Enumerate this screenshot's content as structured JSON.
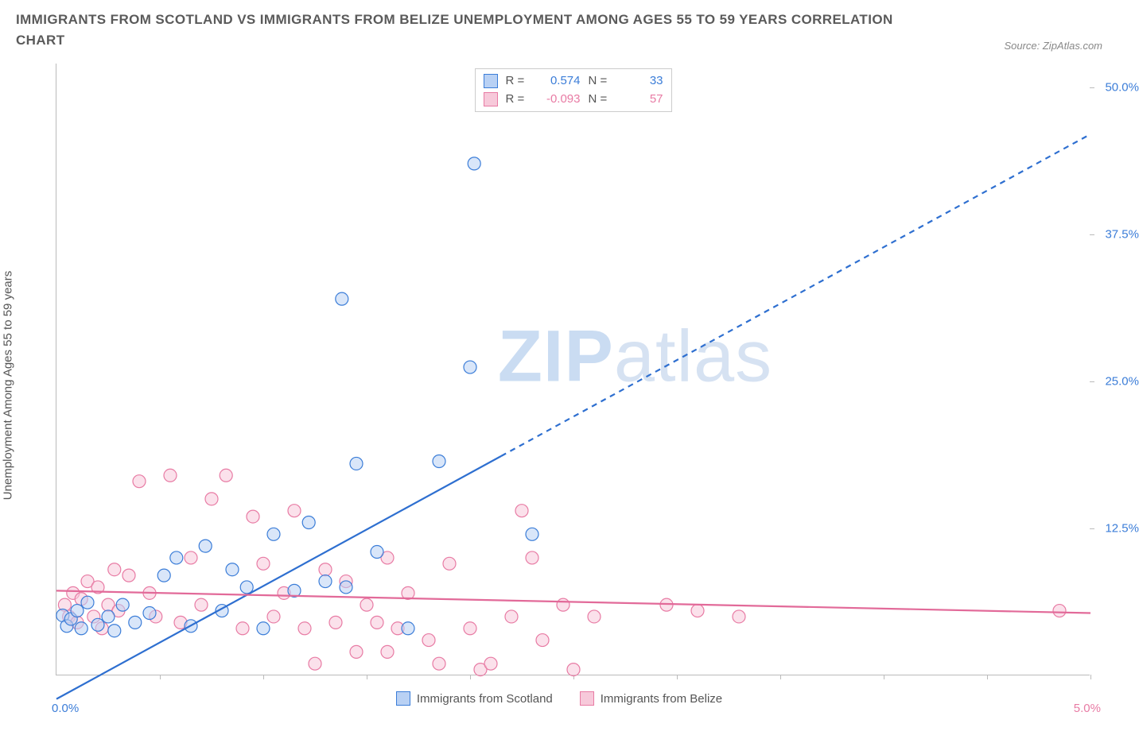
{
  "title": "IMMIGRANTS FROM SCOTLAND VS IMMIGRANTS FROM BELIZE UNEMPLOYMENT AMONG AGES 55 TO 59 YEARS CORRELATION CHART",
  "source_label": "Source: ZipAtlas.com",
  "y_axis_label": "Unemployment Among Ages 55 to 59 years",
  "watermark": {
    "bold": "ZIP",
    "rest": "atlas"
  },
  "chart": {
    "type": "scatter",
    "background_color": "#ffffff",
    "axis_color": "#bbbbbb",
    "xlim": [
      0.0,
      5.0
    ],
    "ylim": [
      0.0,
      52.0
    ],
    "x_ticks_pct": [
      10,
      20,
      30,
      40,
      50,
      60,
      70,
      80,
      90,
      100
    ],
    "y_ticks": [
      {
        "value": 12.5,
        "label": "12.5%"
      },
      {
        "value": 25.0,
        "label": "25.0%"
      },
      {
        "value": 37.5,
        "label": "37.5%"
      },
      {
        "value": 50.0,
        "label": "50.0%"
      }
    ],
    "x_min_label": "0.0%",
    "x_max_label": "5.0%",
    "marker_radius": 8,
    "marker_stroke_width": 1.2,
    "line_width": 2.2,
    "legend_top": {
      "r_label": "R =",
      "n_label": "N =",
      "rows": [
        {
          "swatch_fill": "#b9d1f4",
          "swatch_stroke": "#3b7dd8",
          "text_color": "#3b7dd8",
          "r": "0.574",
          "n": "33"
        },
        {
          "swatch_fill": "#f7c9da",
          "swatch_stroke": "#e87ba4",
          "text_color": "#e87ba4",
          "r": "-0.093",
          "n": "57"
        }
      ]
    },
    "bottom_legend": [
      {
        "swatch_fill": "#b9d1f4",
        "swatch_stroke": "#3b7dd8",
        "label": "Immigrants from Scotland"
      },
      {
        "swatch_fill": "#f7c9da",
        "swatch_stroke": "#e87ba4",
        "label": "Immigrants from Belize"
      }
    ],
    "series": [
      {
        "name": "scotland",
        "fill": "#b9d1f4",
        "stroke": "#3b7dd8",
        "fill_opacity": 0.55,
        "line_color": "#2e6fd0",
        "trend": {
          "y_at_xmin": -2.0,
          "y_at_xmax": 46.0,
          "solid_until_x": 2.15
        },
        "points": [
          [
            0.03,
            5.1
          ],
          [
            0.05,
            4.2
          ],
          [
            0.07,
            4.8
          ],
          [
            0.1,
            5.5
          ],
          [
            0.12,
            4.0
          ],
          [
            0.15,
            6.2
          ],
          [
            0.2,
            4.3
          ],
          [
            0.25,
            5.0
          ],
          [
            0.28,
            3.8
          ],
          [
            0.32,
            6.0
          ],
          [
            0.38,
            4.5
          ],
          [
            0.45,
            5.3
          ],
          [
            0.52,
            8.5
          ],
          [
            0.58,
            10.0
          ],
          [
            0.65,
            4.2
          ],
          [
            0.72,
            11.0
          ],
          [
            0.8,
            5.5
          ],
          [
            0.85,
            9.0
          ],
          [
            0.92,
            7.5
          ],
          [
            1.0,
            4.0
          ],
          [
            1.05,
            12.0
          ],
          [
            1.15,
            7.2
          ],
          [
            1.22,
            13.0
          ],
          [
            1.3,
            8.0
          ],
          [
            1.4,
            7.5
          ],
          [
            1.45,
            18.0
          ],
          [
            1.38,
            32.0
          ],
          [
            1.55,
            10.5
          ],
          [
            1.7,
            4.0
          ],
          [
            1.85,
            18.2
          ],
          [
            2.0,
            26.2
          ],
          [
            2.02,
            43.5
          ],
          [
            2.3,
            12.0
          ]
        ]
      },
      {
        "name": "belize",
        "fill": "#f7c9da",
        "stroke": "#e87ba4",
        "fill_opacity": 0.55,
        "line_color": "#e26a99",
        "trend": {
          "y_at_xmin": 7.2,
          "y_at_xmax": 5.3,
          "solid_until_x": 5.0
        },
        "points": [
          [
            0.04,
            6.0
          ],
          [
            0.06,
            5.0
          ],
          [
            0.08,
            7.0
          ],
          [
            0.1,
            4.5
          ],
          [
            0.12,
            6.5
          ],
          [
            0.15,
            8.0
          ],
          [
            0.18,
            5.0
          ],
          [
            0.2,
            7.5
          ],
          [
            0.22,
            4.0
          ],
          [
            0.25,
            6.0
          ],
          [
            0.28,
            9.0
          ],
          [
            0.3,
            5.5
          ],
          [
            0.35,
            8.5
          ],
          [
            0.4,
            16.5
          ],
          [
            0.45,
            7.0
          ],
          [
            0.48,
            5.0
          ],
          [
            0.55,
            17.0
          ],
          [
            0.6,
            4.5
          ],
          [
            0.65,
            10.0
          ],
          [
            0.7,
            6.0
          ],
          [
            0.75,
            15.0
          ],
          [
            0.82,
            17.0
          ],
          [
            0.9,
            4.0
          ],
          [
            0.95,
            13.5
          ],
          [
            1.0,
            9.5
          ],
          [
            1.05,
            5.0
          ],
          [
            1.1,
            7.0
          ],
          [
            1.15,
            14.0
          ],
          [
            1.2,
            4.0
          ],
          [
            1.25,
            1.0
          ],
          [
            1.3,
            9.0
          ],
          [
            1.35,
            4.5
          ],
          [
            1.4,
            8.0
          ],
          [
            1.45,
            2.0
          ],
          [
            1.5,
            6.0
          ],
          [
            1.55,
            4.5
          ],
          [
            1.6,
            10.0
          ],
          [
            1.6,
            2.0
          ],
          [
            1.65,
            4.0
          ],
          [
            1.7,
            7.0
          ],
          [
            1.8,
            3.0
          ],
          [
            1.85,
            1.0
          ],
          [
            1.9,
            9.5
          ],
          [
            2.0,
            4.0
          ],
          [
            2.05,
            0.5
          ],
          [
            2.1,
            1.0
          ],
          [
            2.2,
            5.0
          ],
          [
            2.25,
            14.0
          ],
          [
            2.3,
            10.0
          ],
          [
            2.35,
            3.0
          ],
          [
            2.45,
            6.0
          ],
          [
            2.5,
            0.5
          ],
          [
            2.6,
            5.0
          ],
          [
            2.95,
            6.0
          ],
          [
            3.1,
            5.5
          ],
          [
            3.3,
            5.0
          ],
          [
            4.85,
            5.5
          ]
        ]
      }
    ]
  }
}
